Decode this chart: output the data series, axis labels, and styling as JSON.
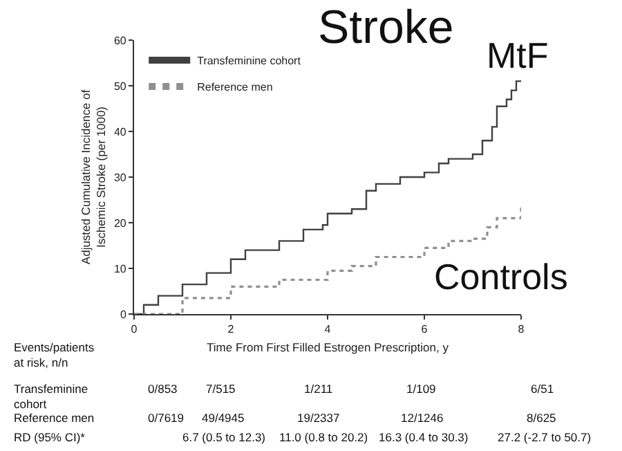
{
  "chart_data": {
    "type": "step",
    "xlabel": "Time From First Filled Estrogen Prescription, y",
    "ylabel": "Adjusted Cumulative Incidence of\nIschemic Stroke (per 1000)",
    "xlim": [
      0,
      8
    ],
    "xticks": [
      0,
      2,
      4,
      6,
      8
    ],
    "ylim": [
      0,
      60
    ],
    "yticks": [
      0,
      10,
      20,
      30,
      40,
      50,
      60
    ],
    "legend": "top left",
    "marker": "none",
    "series": [
      {
        "name": "Transfeminine cohort",
        "color": "#404040",
        "line_style": "solid",
        "x": [
          0,
          0.2,
          0.5,
          1,
          1.5,
          2,
          2.3,
          3,
          3.5,
          3.9,
          4,
          4.5,
          4.8,
          5,
          5.5,
          6,
          6.3,
          6.5,
          7,
          7.2,
          7.4,
          7.5,
          7.7,
          7.8,
          7.9,
          8
        ],
        "values": [
          0,
          2,
          4,
          6.5,
          9,
          12,
          14,
          16,
          18.5,
          19.5,
          22,
          23,
          27,
          28.5,
          30,
          31,
          33,
          34,
          35,
          38,
          41,
          45.5,
          47,
          49,
          51,
          51
        ]
      },
      {
        "name": "Reference men",
        "color": "#909090",
        "line_style": "dotted",
        "x": [
          0,
          1,
          2,
          3,
          4,
          4.5,
          5,
          6,
          6.5,
          7,
          7.3,
          7.5,
          8
        ],
        "values": [
          0,
          3.5,
          6,
          7.5,
          9.5,
          10.5,
          12.5,
          14.5,
          16,
          16.5,
          19,
          21,
          24
        ]
      }
    ],
    "annotations": [
      "Stroke",
      "MtF",
      "Controls",
      "Events/patients\nat risk, n/n",
      "Transfeminine\ncohort",
      "0/853",
      "7/515",
      "1/211",
      "1/109",
      "6/51",
      "Reference men",
      "0/7619",
      "49/4945",
      "19/2337",
      "12/1246",
      "8/625",
      "RD (95% CI)*",
      "6.7 (0.5 to 12.3)",
      "11.0 (0.8 to 20.2)",
      "16.3 (0.4 to 30.3)",
      "27.2 (-2.7 to 50.7)"
    ]
  }
}
